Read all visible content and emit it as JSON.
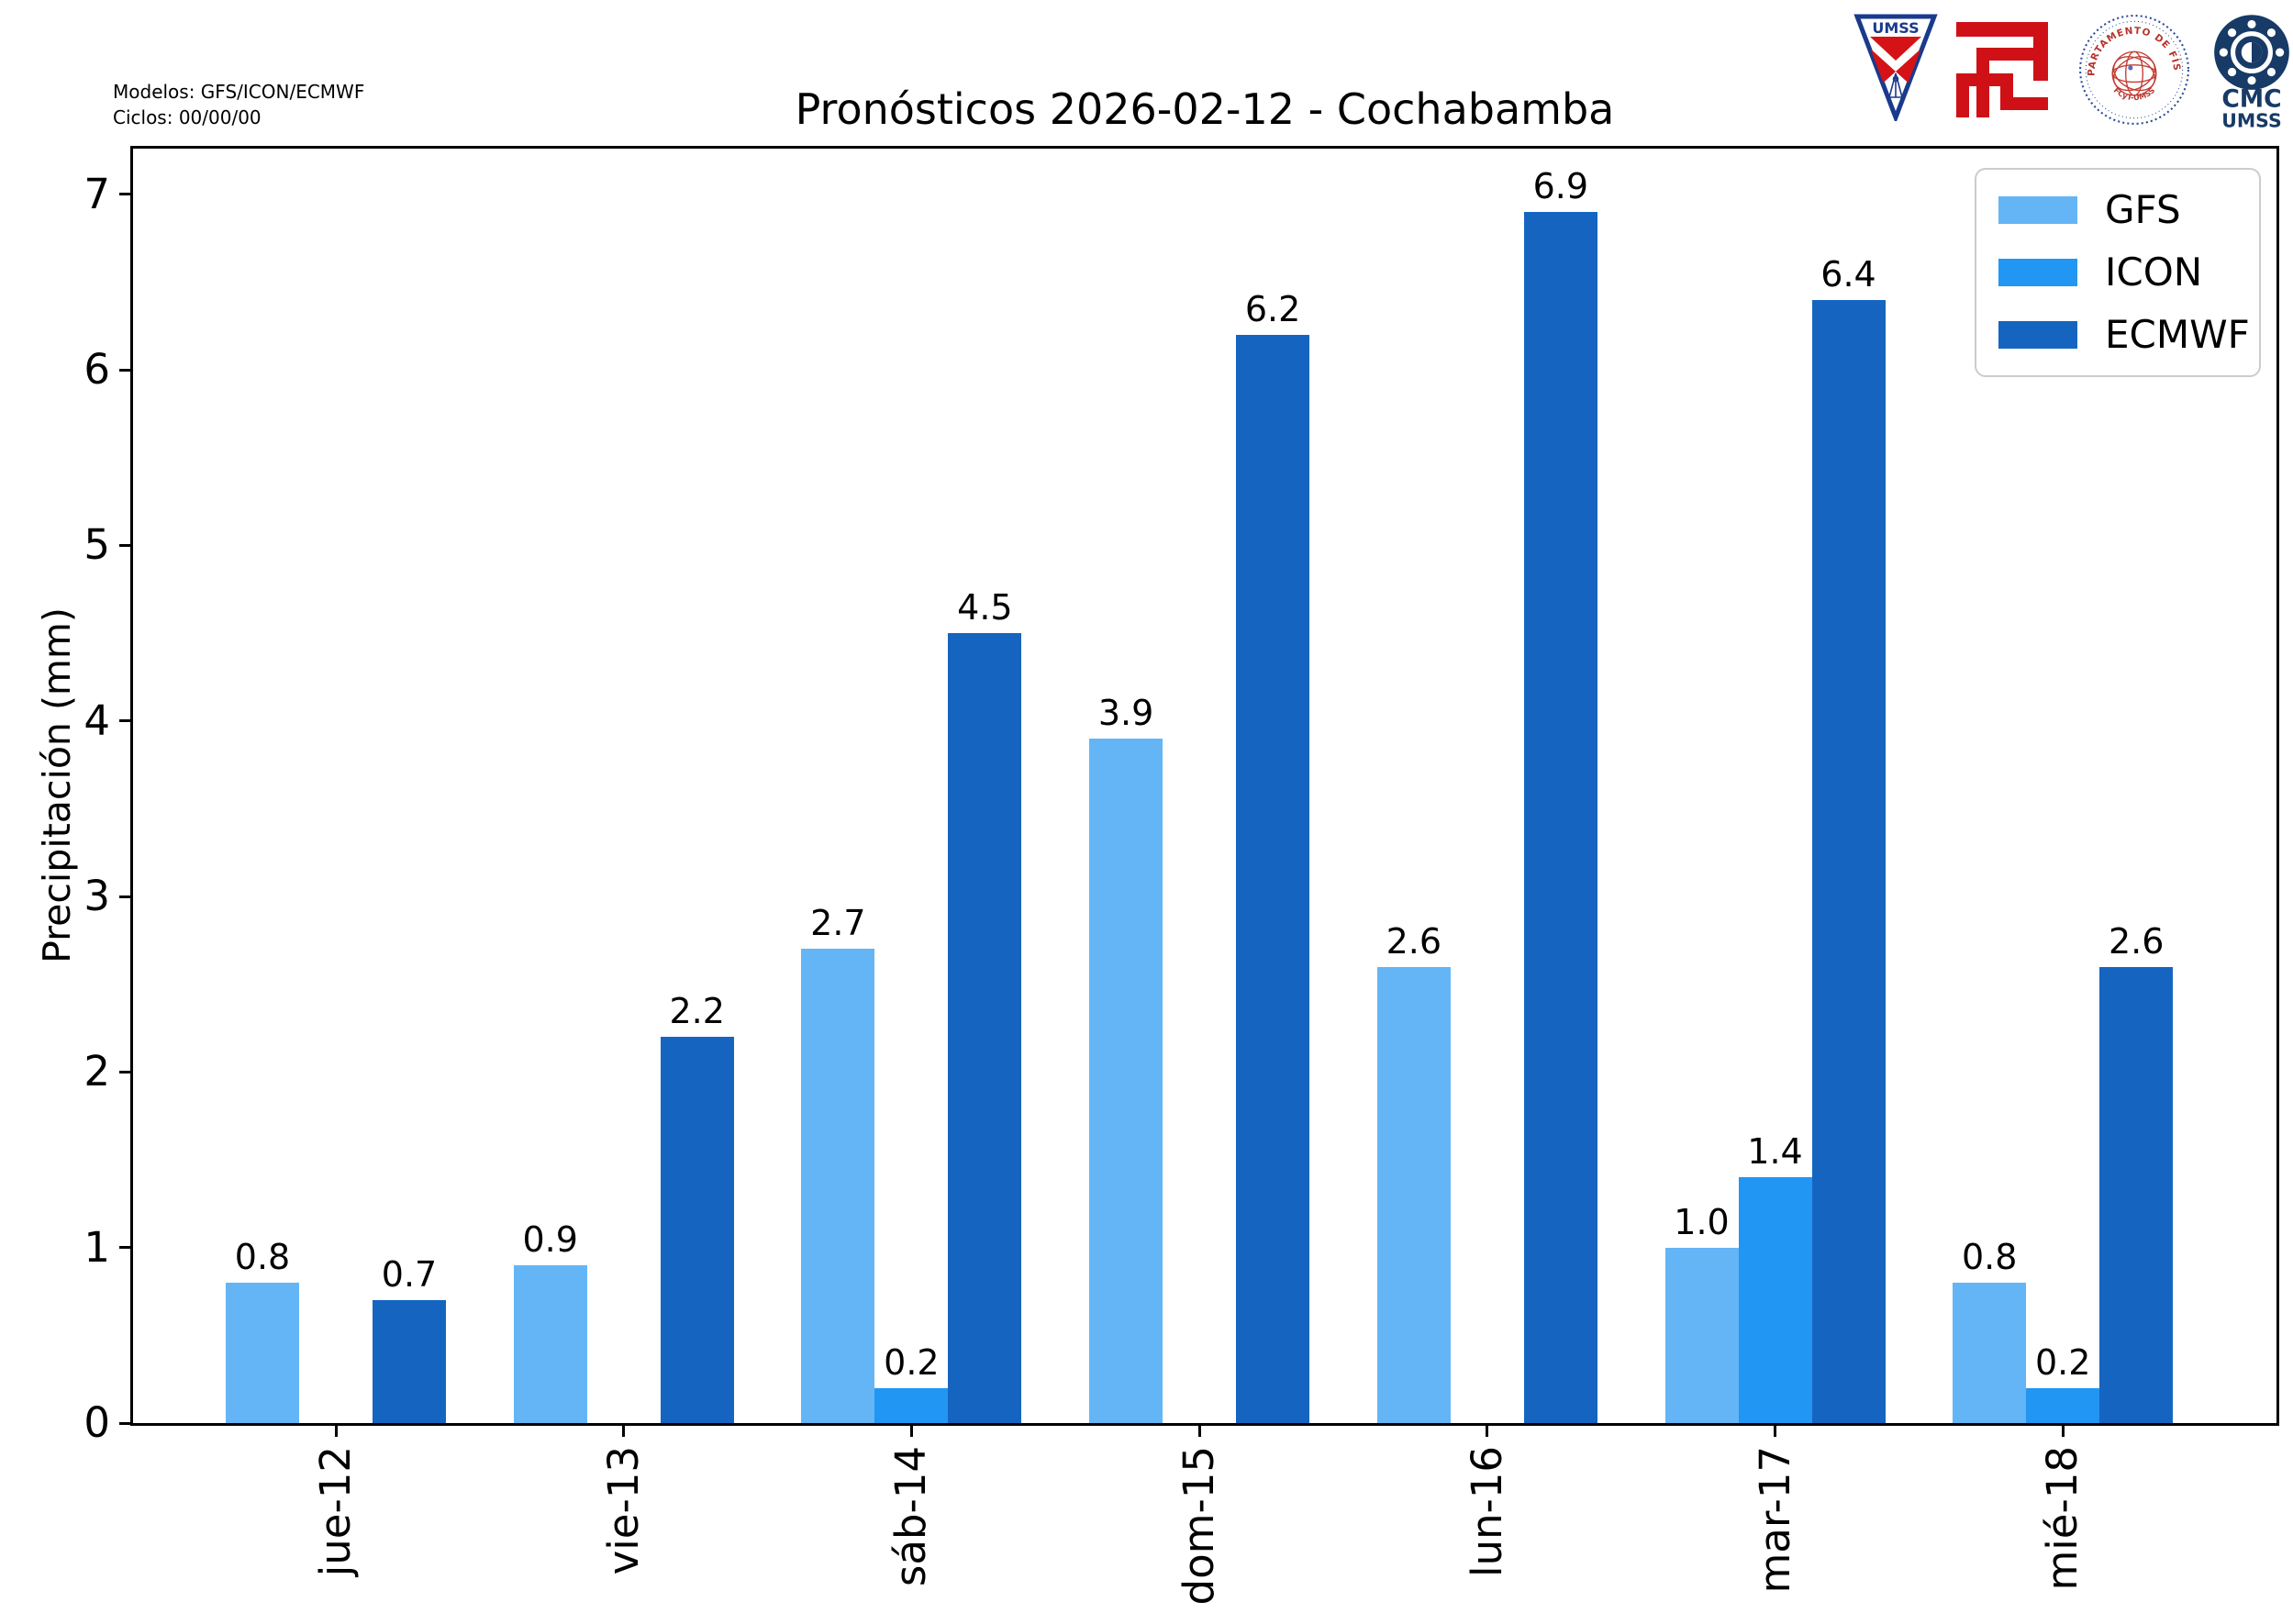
{
  "annotation": {
    "models": "Modelos: GFS/ICON/ECMWF",
    "cycles": "Ciclos: 00/00/00"
  },
  "chart_data": {
    "type": "bar",
    "title": "Pronósticos 2026-02-12 - Cochabamba",
    "categories": [
      "jue-12",
      "vie-13",
      "sáb-14",
      "dom-15",
      "lun-16",
      "mar-17",
      "mié-18"
    ],
    "series": [
      {
        "name": "GFS",
        "color": "#64B5F6",
        "values": [
          0.8,
          0.9,
          2.7,
          3.9,
          2.6,
          1.0,
          0.8
        ]
      },
      {
        "name": "ICON",
        "color": "#2196F3",
        "values": [
          0,
          0,
          0.2,
          0,
          0,
          1.4,
          0.2
        ]
      },
      {
        "name": "ECMWF",
        "color": "#1565C0",
        "values": [
          0.7,
          2.2,
          4.5,
          6.2,
          6.9,
          6.4,
          2.6
        ]
      }
    ],
    "xlabel": "",
    "ylabel": "Precipitación (mm)",
    "yticks": [
      0,
      1,
      2,
      3,
      4,
      5,
      6,
      7
    ],
    "ylim": [
      0,
      7.26
    ],
    "grid": false,
    "legend_position": "upper right",
    "bar_labels": "one decimal above each nonzero bar"
  },
  "logos": {
    "umss_shield_text": "UMSS",
    "fisica_arc_text": "DEPARTAMENTO DE FÍSICA",
    "fisica_bottom_text": "FCyT-UMSS",
    "cmc_line1": "CMC",
    "cmc_line2": "UMSS"
  }
}
